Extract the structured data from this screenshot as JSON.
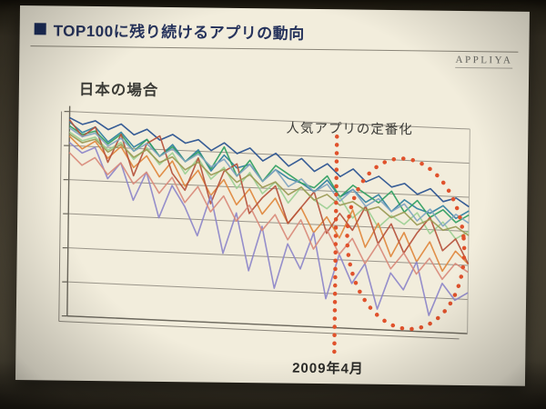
{
  "slide": {
    "title": "TOP100に残り続けるアプリの動向",
    "logo": "APPLIYA",
    "subtitle": "日本の場合"
  },
  "chart_data": {
    "type": "line",
    "title": "日本の場合",
    "xlabel": "",
    "ylabel": "",
    "ylim": [
      0,
      100
    ],
    "grid": true,
    "legend": "none",
    "style": "3d-perspective, many jagged app-ranking lines trending downward",
    "annotations": [
      {
        "text": "人気アプリの定番化",
        "type": "label-with-dotted-circle",
        "color": "#e0522c"
      },
      {
        "text": "2009年4月",
        "type": "vertical-dotted-line",
        "x_frac": 0.68,
        "color": "#e0522c"
      }
    ],
    "x_count": 32,
    "series": [
      {
        "name": "app-1",
        "color": "#27508f",
        "values": [
          97,
          94,
          96,
          92,
          95,
          90,
          93,
          88,
          91,
          87,
          89,
          84,
          88,
          83,
          86,
          80,
          84,
          78,
          82,
          76,
          80,
          74,
          78,
          72,
          75,
          70,
          72,
          67,
          70,
          64,
          66,
          62
        ]
      },
      {
        "name": "app-2",
        "color": "#2f7f9f",
        "values": [
          95,
          90,
          93,
          86,
          91,
          84,
          88,
          80,
          86,
          78,
          84,
          74,
          82,
          76,
          78,
          70,
          76,
          72,
          70,
          66,
          72,
          64,
          68,
          62,
          66,
          58,
          64,
          60,
          58,
          62,
          56,
          60
        ]
      },
      {
        "name": "app-3",
        "color": "#2f9e5f",
        "values": [
          93,
          89,
          91,
          85,
          90,
          82,
          88,
          80,
          85,
          78,
          83,
          75,
          86,
          72,
          80,
          70,
          78,
          74,
          70,
          68,
          74,
          64,
          70,
          66,
          62,
          68,
          58,
          64,
          56,
          60,
          54,
          58
        ]
      },
      {
        "name": "app-4",
        "color": "#9ccf92",
        "values": [
          90,
          86,
          88,
          82,
          86,
          78,
          84,
          76,
          82,
          72,
          80,
          70,
          76,
          66,
          74,
          64,
          70,
          60,
          68,
          62,
          58,
          64,
          54,
          60,
          50,
          56,
          52,
          58,
          48,
          54,
          46,
          50
        ]
      },
      {
        "name": "app-5",
        "color": "#e0873c",
        "values": [
          88,
          82,
          86,
          78,
          84,
          74,
          80,
          70,
          78,
          66,
          74,
          62,
          70,
          58,
          66,
          54,
          62,
          50,
          58,
          46,
          54,
          44,
          58,
          40,
          52,
          36,
          48,
          34,
          44,
          30,
          40,
          34
        ]
      },
      {
        "name": "app-6",
        "color": "#b5503a",
        "values": [
          96,
          88,
          93,
          76,
          90,
          70,
          86,
          90,
          72,
          64,
          80,
          58,
          74,
          78,
          54,
          62,
          68,
          50,
          58,
          66,
          46,
          56,
          48,
          60,
          42,
          52,
          38,
          48,
          56,
          40,
          46,
          34
        ]
      },
      {
        "name": "app-7",
        "color": "#8d85c9",
        "values": [
          85,
          80,
          83,
          68,
          76,
          58,
          72,
          50,
          66,
          56,
          42,
          62,
          34,
          54,
          26,
          48,
          18,
          40,
          28,
          46,
          14,
          36,
          22,
          32,
          10,
          28,
          20,
          34,
          8,
          24,
          16,
          20
        ]
      },
      {
        "name": "app-8",
        "color": "#7fa3c0",
        "values": [
          92,
          88,
          90,
          84,
          88,
          82,
          86,
          80,
          84,
          78,
          82,
          76,
          80,
          72,
          78,
          70,
          76,
          68,
          72,
          66,
          70,
          62,
          68,
          60,
          64,
          58,
          62,
          54,
          60,
          52,
          58,
          54
        ]
      },
      {
        "name": "app-9",
        "color": "#d98a7a",
        "values": [
          80,
          74,
          78,
          70,
          76,
          66,
          72,
          62,
          70,
          58,
          66,
          54,
          62,
          50,
          58,
          46,
          54,
          42,
          52,
          38,
          48,
          36,
          44,
          32,
          42,
          30,
          38,
          28,
          36,
          26,
          34,
          30
        ]
      },
      {
        "name": "app-10",
        "color": "#9a9a54",
        "values": [
          89,
          85,
          87,
          81,
          85,
          79,
          83,
          77,
          80,
          74,
          78,
          72,
          75,
          69,
          73,
          67,
          70,
          64,
          68,
          62,
          65,
          60,
          62,
          58,
          60,
          55,
          58,
          52,
          55,
          50,
          52,
          48
        ]
      }
    ]
  }
}
